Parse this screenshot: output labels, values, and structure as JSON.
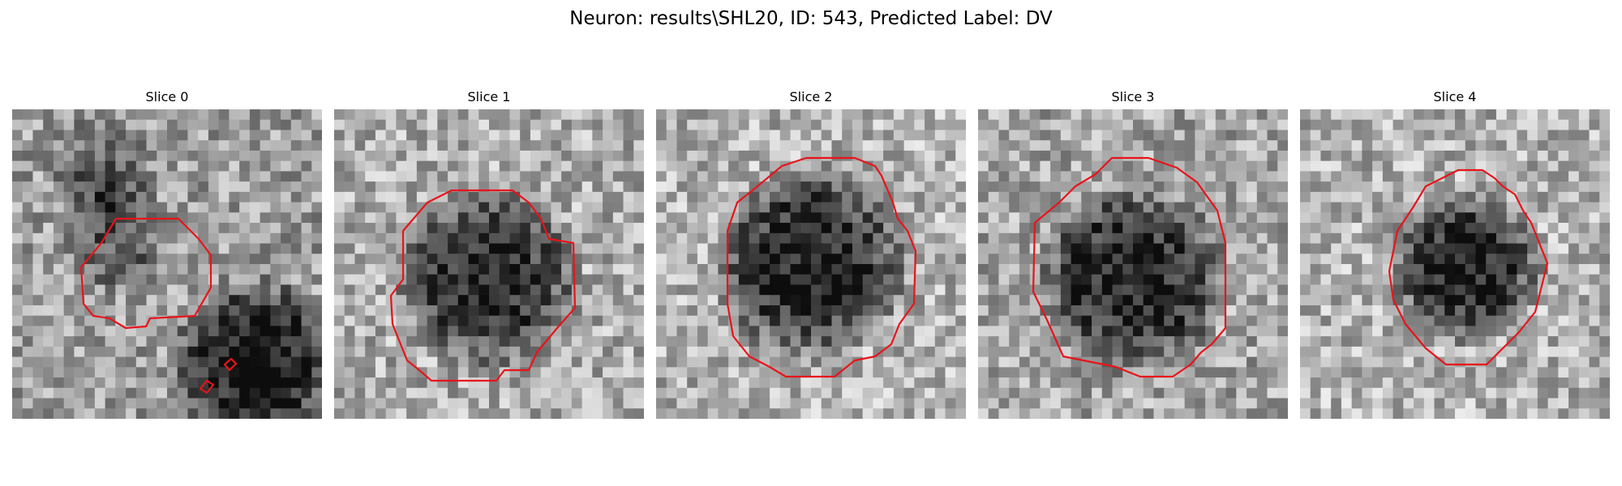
{
  "figure": {
    "title": "Neuron: results\\SHL20, ID: 543, Predicted Label: DV"
  },
  "panels": [
    {
      "title": "Slice 0",
      "seed": 11
    },
    {
      "title": "Slice 1",
      "seed": 23
    },
    {
      "title": "Slice 2",
      "seed": 37
    },
    {
      "title": "Slice 3",
      "seed": 41
    },
    {
      "title": "Slice 4",
      "seed": 59
    }
  ],
  "colors": {
    "contour": "#e8141a",
    "background": "#ffffff"
  },
  "image": {
    "colormap": "gray",
    "grid_size": 30,
    "description_of_content": "grayscale microscopy slice with segmentation contour"
  }
}
